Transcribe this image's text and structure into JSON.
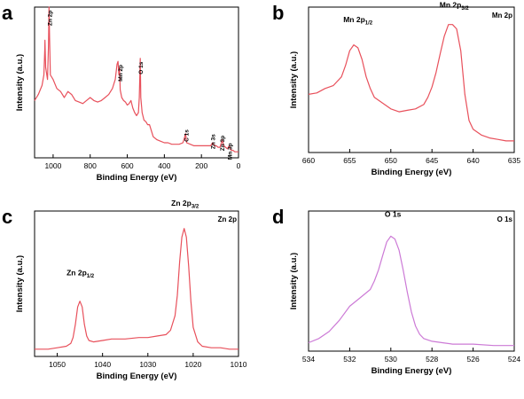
{
  "chart_data": [
    {
      "panel": "a",
      "type": "line",
      "title": "",
      "xlabel": "Binding Energy (eV)",
      "ylabel": "Intensity (a.u.)",
      "xlim": [
        1100,
        0
      ],
      "x_ticks": [
        1000,
        800,
        600,
        400,
        200,
        0
      ],
      "ylim": [
        0,
        100
      ],
      "color": "#e8505b",
      "annotations": [
        {
          "text": "Zn 2p",
          "x": 1022,
          "y": 96
        },
        {
          "text": "Mn 2p",
          "x": 642,
          "y": 60
        },
        {
          "text": "O 1s",
          "x": 530,
          "y": 62
        },
        {
          "text": "C 1s",
          "x": 285,
          "y": 17
        },
        {
          "text": "Zn 3s",
          "x": 140,
          "y": 14
        },
        {
          "text": "Zn 3p",
          "x": 90,
          "y": 13
        },
        {
          "text": "Mn 3p",
          "x": 50,
          "y": 8
        }
      ],
      "series": [
        {
          "x": [
            1100,
            1080,
            1060,
            1050,
            1045,
            1044,
            1040,
            1030,
            1025,
            1022,
            1019,
            1015,
            1000,
            980,
            960,
            940,
            920,
            900,
            880,
            860,
            840,
            820,
            800,
            780,
            760,
            740,
            720,
            700,
            680,
            665,
            655,
            650,
            645,
            642,
            638,
            630,
            620,
            610,
            600,
            590,
            580,
            570,
            560,
            550,
            540,
            535,
            530,
            527,
            520,
            510,
            500,
            490,
            480,
            460,
            440,
            420,
            400,
            380,
            360,
            340,
            320,
            300,
            290,
            285,
            280,
            260,
            240,
            220,
            200,
            180,
            160,
            150,
            140,
            130,
            120,
            110,
            100,
            92,
            88,
            80,
            70,
            60,
            55,
            50,
            45,
            40,
            30,
            20,
            10,
            0
          ],
          "y": [
            38,
            42,
            48,
            55,
            72,
            78,
            60,
            52,
            75,
            100,
            80,
            55,
            52,
            46,
            44,
            40,
            44,
            42,
            38,
            37,
            36,
            38,
            40,
            38,
            37,
            38,
            40,
            42,
            46,
            52,
            62,
            64,
            55,
            60,
            45,
            40,
            38,
            37,
            35,
            36,
            38,
            33,
            30,
            28,
            30,
            40,
            66,
            40,
            30,
            25,
            24,
            22,
            22,
            14,
            12,
            11,
            10,
            10,
            9,
            9,
            9,
            10,
            14,
            16,
            10,
            9,
            8,
            8,
            8,
            8,
            8,
            8,
            10,
            8,
            8,
            7,
            7,
            10,
            12,
            8,
            7,
            6,
            7,
            8,
            6,
            5,
            5,
            4,
            4,
            4
          ]
        }
      ]
    },
    {
      "panel": "b",
      "type": "line",
      "title": "Mn 2p",
      "xlabel": "Binding Energy (eV)",
      "ylabel": "Intensity (a.u.)",
      "xlim": [
        660,
        635
      ],
      "x_ticks": [
        660,
        655,
        650,
        645,
        640,
        635
      ],
      "ylim": [
        0,
        100
      ],
      "color": "#e8505b",
      "annotations": [
        {
          "text": "Mn 2p",
          "sub": "1/2",
          "x": 654.0,
          "y": 86
        },
        {
          "text": "Mn 2p",
          "sub": "3/2",
          "x": 642.3,
          "y": 96
        }
      ],
      "series": [
        {
          "x": [
            660,
            659,
            658,
            657,
            656,
            655.5,
            655,
            654.5,
            654,
            653.5,
            653,
            652.5,
            652,
            651,
            650,
            649,
            648,
            647,
            646,
            645.5,
            645,
            644.5,
            644,
            643.5,
            643,
            642.5,
            642,
            641.5,
            641,
            640.5,
            640,
            639,
            638,
            637,
            636,
            635
          ],
          "y": [
            40,
            41,
            44,
            46,
            52,
            60,
            70,
            74,
            72,
            64,
            52,
            44,
            38,
            34,
            30,
            28,
            29,
            30,
            33,
            38,
            45,
            55,
            68,
            80,
            88,
            88,
            85,
            70,
            40,
            22,
            16,
            12,
            10,
            9,
            8,
            8
          ]
        }
      ]
    },
    {
      "panel": "c",
      "type": "line",
      "title": "Zn 2p",
      "xlabel": "Binding Energy (eV)",
      "ylabel": "Intensity (a.u.)",
      "xlim": [
        1055,
        1010
      ],
      "x_ticks": [
        1050,
        1040,
        1030,
        1020,
        1010
      ],
      "ylim": [
        0,
        100
      ],
      "color": "#e8505b",
      "annotations": [
        {
          "text": "Zn 2p",
          "sub": "1/2",
          "x": 1044.9,
          "y": 52
        },
        {
          "text": "Zn 2p",
          "sub": "3/2",
          "x": 1021.8,
          "y": 100
        }
      ],
      "series": [
        {
          "x": [
            1055,
            1052,
            1050,
            1048,
            1047,
            1046.5,
            1046,
            1045.5,
            1045,
            1044.5,
            1044,
            1043.5,
            1043,
            1042,
            1040,
            1038,
            1035,
            1032,
            1030,
            1028,
            1026,
            1025,
            1024,
            1023.5,
            1023,
            1022.5,
            1022,
            1021.5,
            1021,
            1020.5,
            1020,
            1019,
            1018,
            1016,
            1014,
            1012,
            1010
          ],
          "y": [
            5,
            5,
            6,
            7,
            9,
            13,
            22,
            34,
            38,
            34,
            22,
            14,
            11,
            10,
            11,
            12,
            12,
            13,
            13,
            14,
            15,
            18,
            28,
            42,
            65,
            82,
            88,
            82,
            62,
            38,
            20,
            10,
            7,
            6,
            6,
            5,
            5
          ]
        }
      ]
    },
    {
      "panel": "d",
      "type": "line",
      "title": "O 1s",
      "xlabel": "Binding Energy (eV)",
      "ylabel": "Intensity (a.u.)",
      "xlim": [
        534,
        524
      ],
      "x_ticks": [
        534,
        532,
        530,
        528,
        526,
        524
      ],
      "ylim": [
        0,
        100
      ],
      "color": "#cc7ad6",
      "annotations": [
        {
          "text": "O 1s",
          "x": 529.9,
          "y": 92
        }
      ],
      "series": [
        {
          "x": [
            534,
            533.5,
            533,
            532.5,
            532,
            531.5,
            531,
            530.8,
            530.6,
            530.4,
            530.2,
            530,
            529.8,
            529.6,
            529.4,
            529.2,
            529,
            528.8,
            528.6,
            528.4,
            528,
            527.5,
            527,
            526,
            525,
            524
          ],
          "y": [
            6,
            9,
            14,
            22,
            32,
            38,
            44,
            50,
            58,
            68,
            78,
            82,
            80,
            72,
            58,
            42,
            28,
            18,
            12,
            9,
            7,
            6,
            5,
            5,
            4,
            4
          ]
        }
      ]
    }
  ]
}
